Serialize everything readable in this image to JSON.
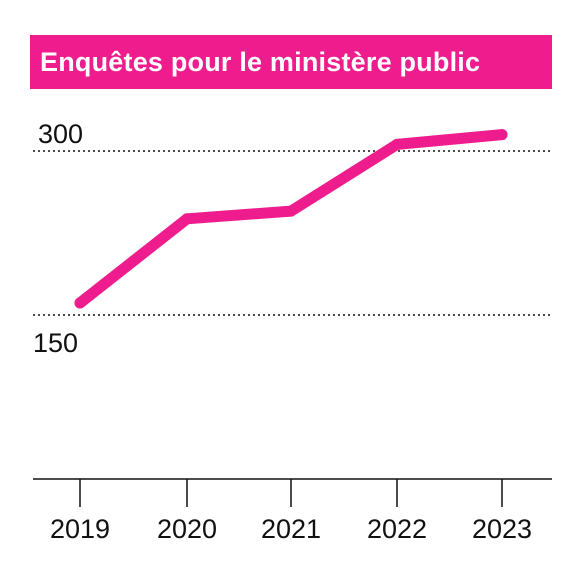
{
  "chart_data": {
    "type": "line",
    "title": "Enquêtes pour le ministère public",
    "xlabel": "",
    "ylabel": "",
    "categories": [
      "2019",
      "2020",
      "2021",
      "2022",
      "2023"
    ],
    "series": [
      {
        "values": [
          161,
          238,
          245,
          306,
          315
        ]
      }
    ],
    "yticks": [
      {
        "value": 300,
        "label": "300"
      },
      {
        "value": 150,
        "label": "150"
      }
    ],
    "ylim": [
      0,
      330
    ],
    "grid": "dotted horizontal at 150 and 300",
    "legend": "none",
    "line_color": "#ee1c8c",
    "banner_color": "#ee1c8c",
    "axis_color": "#111111"
  }
}
